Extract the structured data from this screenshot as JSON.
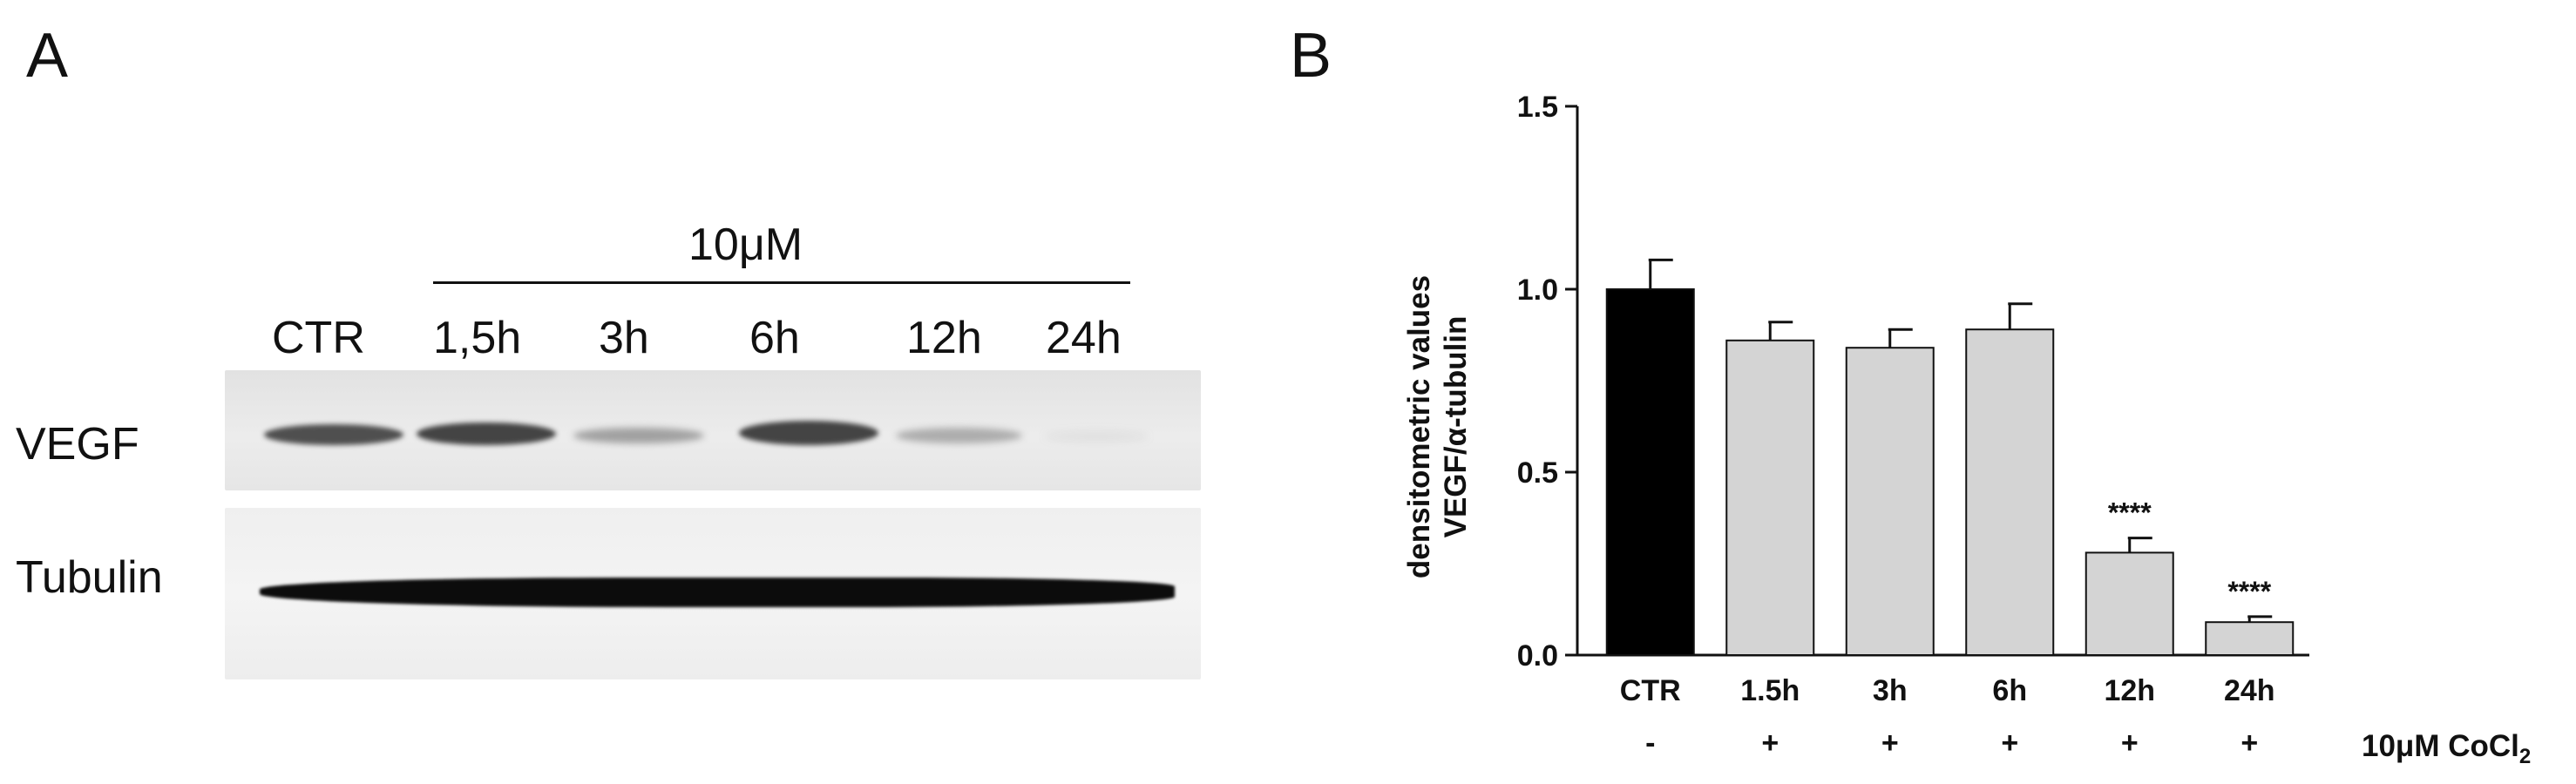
{
  "panels": {
    "a": {
      "letter": "A",
      "treatment_label": "10μM",
      "lanes": [
        "CTR",
        "1,5h",
        "3h",
        "6h",
        "12h",
        "24h"
      ],
      "rows": [
        "VEGF",
        "Tubulin"
      ]
    },
    "b": {
      "letter": "B"
    }
  },
  "chart_data": {
    "type": "bar",
    "categories": [
      "CTR",
      "1.5h",
      "3h",
      "6h",
      "12h",
      "24h"
    ],
    "values": [
      1.0,
      0.86,
      0.84,
      0.89,
      0.28,
      0.09
    ],
    "error": [
      0.08,
      0.05,
      0.05,
      0.07,
      0.04,
      0.015
    ],
    "significance": [
      "",
      "",
      "",
      "",
      "****",
      "****"
    ],
    "treatment_row": {
      "label_prefix": "10μM CoCl",
      "label_subscript": "2",
      "marks": [
        "-",
        "+",
        "+",
        "+",
        "+",
        "+"
      ]
    },
    "ylabel_line1": "densitometric values",
    "ylabel_line2": "VEGF/α-tubulin",
    "xlabel": "",
    "ylim": [
      0,
      1.5
    ],
    "yticks": [
      "0.0",
      "0.5",
      "1.0",
      "1.5"
    ],
    "grid": false,
    "colors": {
      "control_bar": "#000000",
      "treated_bar": "#d4d4d4",
      "axis": "#111111"
    }
  }
}
